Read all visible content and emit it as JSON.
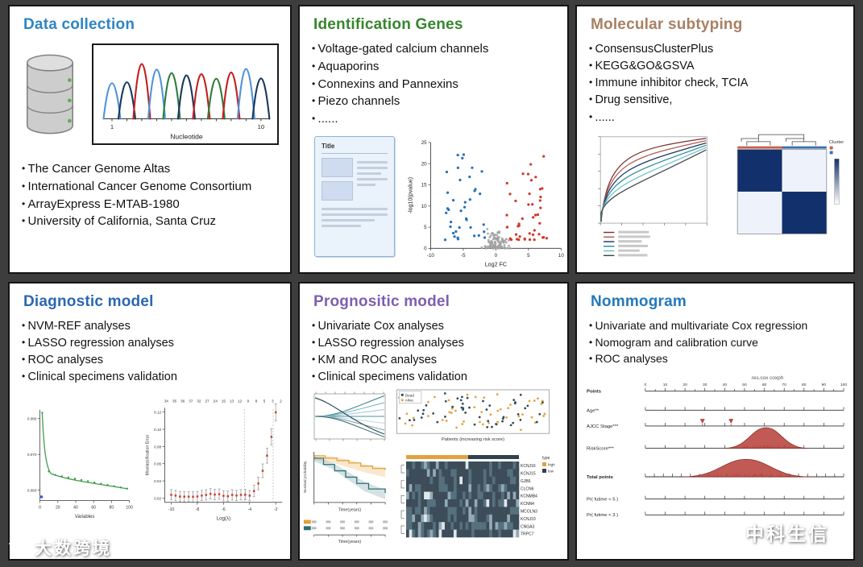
{
  "watermarks": {
    "left": "大数跨境",
    "right": "中科生信"
  },
  "panels": {
    "data_collection": {
      "title": "Data collection",
      "items": [
        "The Cancer Genome Altas",
        "International Cancer Genome Consortium",
        "ArrayExpress E-MTAB-1980",
        "University of California, Santa Cruz"
      ],
      "chart": {
        "xlabel": "Nucleotide",
        "tick_start": "1",
        "tick_end": "10"
      }
    },
    "identification_genes": {
      "title": "Identification Genes",
      "items": [
        "Voltage-gated calcium channels",
        "Aquaporins",
        "Connexins and Pannexins",
        "Piezo channels",
        "......"
      ],
      "doc_title": "Title",
      "volcano": {
        "ylabel": "-log10(pvalue)",
        "xlabel": "Log2 FC",
        "x_ticks": [
          "-10",
          "-5",
          "0",
          "5",
          "10"
        ],
        "y_ticks": [
          "0",
          "5",
          "10",
          "15",
          "20",
          "25"
        ]
      }
    },
    "molecular_subtyping": {
      "title": "Molecular subtyping",
      "items": [
        "ConsensusClusterPlus",
        "KEGG&GO&GSVA",
        "Immune inhibitor check, TCIA",
        "Drug sensitive,",
        "......"
      ],
      "heatmap_label": "Cluster"
    },
    "diagnostic_model": {
      "title": "Diagnostic model",
      "items": [
        "NVM-REF analyses",
        "LASSO regression analyses",
        "ROC analyses",
        "Clinical specimens validation"
      ],
      "left_chart": {
        "xlabel": "Variables",
        "x_ticks": [
          "0",
          "20",
          "40",
          "60",
          "80",
          "100"
        ],
        "y_ticks": [
          "0.060",
          "0.070",
          "0.080"
        ]
      },
      "right_chart": {
        "ylabel": "Misclassification Error",
        "xlabel": "Log(λ)",
        "top_ticks": "34 35 36 37 32 27 24 15 13 12 9 8 5 3 2",
        "x_ticks": [
          "-10",
          "-8",
          "-6",
          "-4",
          "-2"
        ],
        "y_ticks": [
          "0.02",
          "0.04",
          "0.06",
          "0.08",
          "0.10",
          "0.12"
        ]
      }
    },
    "prognostic_model": {
      "title": "Prognositic model",
      "items": [
        "Univariate Cox analyses",
        "LASSO regression analyses",
        "KM and ROC analyses",
        "Clinical specimens validation"
      ],
      "risk_plot": {
        "xlabel": "Patients (increasing risk score)",
        "legend": [
          "Dead",
          "Alive"
        ]
      },
      "km": {
        "xlabel": "Time(years)",
        "ylabel": "Survival probability"
      },
      "heatmap_genes": [
        "KCNJ16",
        "KCNJ15",
        "GJB6",
        "CLCN6",
        "KCNMB4",
        "KCNN4",
        "MCOLN3",
        "KCNJ10",
        "CNGA3",
        "TRPC7"
      ],
      "heatmap_legend": {
        "title": "type",
        "high": "high",
        "low": "low"
      }
    },
    "nomogram": {
      "title": "Nommogram",
      "items": [
        "Univariate and multivariate Cox regression",
        "Nomogram and calibration curve",
        "ROC analyses"
      ],
      "plot_title": "res.cox coxph",
      "rows": [
        "Points",
        "Age**",
        "AJCC Stage***",
        "RiskScore***",
        "Total points",
        "Pr( futime < 5 )",
        "Pr( futime < 3 )"
      ],
      "points_ticks": [
        "0",
        "10",
        "20",
        "30",
        "40",
        "50",
        "60",
        "70",
        "80",
        "90",
        "100"
      ]
    }
  }
}
